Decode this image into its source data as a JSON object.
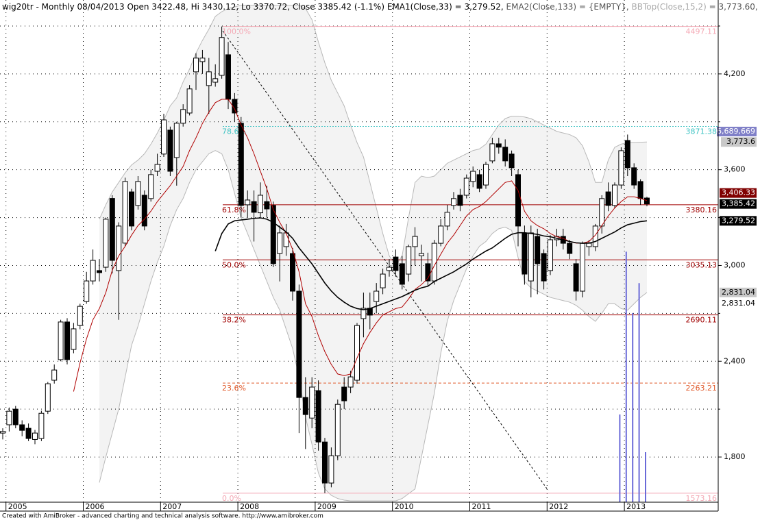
{
  "chart_data": {
    "type": "candlestick",
    "title_parts": [
      {
        "text": "wig20tr - Monthly 08/04/2013 Open 3422.48, Hi 3430.12, Lo 3370.72, Close 3385.42 (-1.1%) ",
        "color": "#000000"
      },
      {
        "text": "EMA1(Close,33) = 3,279.52, ",
        "color": "#000000"
      },
      {
        "text": "EMA2(Close,133) = {EMPTY}, ",
        "color": "#555555"
      },
      {
        "text": "BBTop(Close,15,2)",
        "color": "#aaaaaa"
      },
      {
        "text": " = 3,773.60, ",
        "color": "#555555"
      },
      {
        "text": "BBBot(Close,15,2) = ",
        "color": "#aaaaaa"
      }
    ],
    "footer": "Created with AmiBroker - advanced charting and technical analysis software. http://www.amibroker.com",
    "categories": [
      null,
      "2005",
      null,
      null,
      null,
      null,
      null,
      null,
      null,
      null,
      null,
      null,
      null,
      "2006",
      null,
      null,
      null,
      null,
      null,
      null,
      null,
      null,
      null,
      null,
      null,
      "2007",
      null,
      null,
      null,
      null,
      null,
      null,
      null,
      null,
      null,
      null,
      null,
      "2008",
      null,
      null,
      null,
      null,
      null,
      null,
      null,
      null,
      null,
      null,
      null,
      "2009",
      null,
      null,
      null,
      null,
      null,
      null,
      null,
      null,
      null,
      null,
      null,
      "2010",
      null,
      null,
      null,
      null,
      null,
      null,
      null,
      null,
      null,
      null,
      null,
      "2011",
      null,
      null,
      null,
      null,
      null,
      null,
      null,
      null,
      null,
      null,
      null,
      "2012",
      null,
      null,
      null,
      null,
      null,
      null,
      null,
      null,
      null,
      null,
      null,
      "2013",
      null,
      null,
      null
    ],
    "open": [
      1950,
      2002,
      2100,
      2002,
      1980,
      1910,
      1916,
      2087,
      2281,
      2410,
      2646,
      2474,
      2624,
      2774,
      2903,
      2968,
      2989,
      3420,
      2968,
      3140,
      3461,
      3376,
      3440,
      3419,
      3590,
      3698,
      3848,
      3676,
      3891,
      3955,
      4213,
      4277,
      4127,
      4148,
      4191,
      4320,
      4041,
      3891,
      3380,
      3400,
      3330,
      3400,
      3376,
      3075,
      3118,
      3075,
      2839,
      2173,
      2044,
      2216,
      1894,
      1637,
      1808,
      2238,
      2238,
      2281,
      2667,
      2732,
      2774,
      2860,
      2968,
      3053,
      3011,
      2946,
      3118,
      3060,
      3011,
      2903,
      3139,
      3247,
      3376,
      3440,
      3440,
      3526,
      3569,
      3504,
      3655,
      3762,
      3741,
      3698,
      3569,
      3204,
      2903,
      3182,
      3075,
      2968,
      3161,
      3182,
      3139,
      3011,
      2839,
      3118,
      3118,
      3247,
      3461,
      3376,
      3504,
      3783,
      3612,
      3526,
      3422.48
    ],
    "high": [
      1980,
      2110,
      2120,
      2030,
      2010,
      1970,
      2090,
      2270,
      2380,
      2660,
      2670,
      2640,
      2760,
      2960,
      3100,
      3040,
      3300,
      3440,
      3270,
      3550,
      3480,
      3560,
      3470,
      3600,
      3700,
      3950,
      3870,
      3900,
      4010,
      4130,
      4330,
      4350,
      4300,
      4260,
      4497.11,
      4400,
      4080,
      3930,
      3470,
      3470,
      3520,
      3500,
      3400,
      3250,
      3260,
      3110,
      2880,
      2300,
      2300,
      2280,
      1920,
      1860,
      2160,
      2300,
      2340,
      2640,
      2830,
      2830,
      2890,
      2980,
      3040,
      3100,
      3060,
      3130,
      3240,
      3130,
      3080,
      3160,
      3290,
      3380,
      3460,
      3480,
      3570,
      3620,
      3600,
      3650,
      3800,
      3800,
      3790,
      3720,
      3600,
      3250,
      3250,
      3230,
      3100,
      3190,
      3230,
      3230,
      3160,
      3040,
      3150,
      3160,
      3260,
      3440,
      3520,
      3520,
      3740,
      3820,
      3640,
      3540,
      3430.12
    ],
    "low": [
      1910,
      1960,
      1980,
      1930,
      1900,
      1880,
      1900,
      2070,
      2260,
      2400,
      2380,
      2450,
      2600,
      2760,
      2880,
      2900,
      2960,
      2950,
      2660,
      3120,
      3220,
      3350,
      3220,
      3400,
      3560,
      3680,
      3560,
      3500,
      3870,
      3940,
      4100,
      4200,
      3950,
      4120,
      4170,
      3980,
      3900,
      3300,
      3300,
      3150,
      3300,
      3300,
      2990,
      2900,
      3060,
      2780,
      1950,
      1850,
      1980,
      1840,
      1573.16,
      1610,
      1780,
      2100,
      2200,
      2260,
      2550,
      2600,
      2700,
      2820,
      2930,
      2930,
      2850,
      2900,
      3000,
      2900,
      2870,
      2880,
      3120,
      3220,
      3350,
      3340,
      3420,
      3490,
      3460,
      3480,
      3640,
      3700,
      3620,
      3560,
      3120,
      2880,
      2800,
      2820,
      2850,
      2940,
      3120,
      3100,
      3040,
      2780,
      2800,
      3060,
      3090,
      3200,
      3340,
      3360,
      3480,
      3560,
      3480,
      3380,
      3370.72
    ],
    "close": [
      1960,
      2087,
      2002,
      1967,
      1916,
      1950,
      2074,
      2259,
      2345,
      2646,
      2410,
      2603,
      2744,
      2903,
      3032,
      2955,
      3290,
      3032,
      3247,
      3526,
      3247,
      3526,
      3247,
      3569,
      3633,
      3912,
      3590,
      3891,
      3977,
      4106,
      4299,
      4299,
      4213,
      4170,
      4428,
      4041,
      3955,
      3376,
      3410,
      3333,
      3440,
      3354,
      3011,
      3204,
      3204,
      2839,
      2173,
      2066,
      2238,
      1894,
      1637,
      1808,
      2130,
      2152,
      2302,
      2624,
      2732,
      2689,
      2839,
      2946,
      2989,
      2968,
      2882,
      3118,
      3182,
      3075,
      2903,
      3139,
      3247,
      3333,
      3419,
      3376,
      3547,
      3590,
      3483,
      3633,
      3762,
      3741,
      3655,
      3612,
      3247,
      2946,
      3204,
      3011,
      2903,
      3161,
      3182,
      3139,
      3075,
      2839,
      3139,
      3139,
      3247,
      3419,
      3376,
      3504,
      3719,
      3612,
      3504,
      3419,
      3385.42
    ],
    "close_tag": "3,385.42",
    "overlays": [
      {
        "color": "#b00000",
        "tag": "3,406.33",
        "tag_color": "#800000",
        "values": [
          null,
          null,
          null,
          null,
          null,
          null,
          null,
          null,
          null,
          null,
          null,
          2210,
          2390,
          2540,
          2660,
          2730,
          2830,
          2970,
          3060,
          3120,
          3190,
          3250,
          3290,
          3340,
          3400,
          3450,
          3500,
          3560,
          3620,
          3720,
          3800,
          3890,
          3960,
          4020,
          4041,
          4041,
          3980,
          3880,
          3800,
          3700,
          3590,
          3480,
          3350,
          3270,
          3200,
          3100,
          2960,
          2760,
          2680,
          2560,
          2460,
          2380,
          2320,
          2310,
          2320,
          2420,
          2510,
          2580,
          2640,
          2690,
          2710,
          2730,
          2740,
          2790,
          2850,
          2880,
          2920,
          3000,
          3070,
          3140,
          3190,
          3250,
          3310,
          3350,
          3370,
          3400,
          3440,
          3480,
          3520,
          3530,
          3470,
          3340,
          3280,
          3250,
          3230,
          3200,
          3180,
          3170,
          3150,
          3140,
          3140,
          3150,
          3190,
          3250,
          3310,
          3360,
          3400,
          3430,
          3430,
          3420,
          3406.33
        ]
      },
      {
        "color": "#000000",
        "tag": "3,279.52",
        "tag_color": "#000000",
        "values": [
          null,
          null,
          null,
          null,
          null,
          null,
          null,
          null,
          null,
          null,
          null,
          null,
          null,
          null,
          null,
          null,
          null,
          null,
          null,
          null,
          null,
          null,
          null,
          null,
          null,
          null,
          null,
          null,
          null,
          null,
          null,
          null,
          null,
          3090,
          3200,
          3260,
          3280,
          3285,
          3290,
          3295,
          3298,
          3290,
          3270,
          3240,
          3210,
          3170,
          3110,
          3060,
          3010,
          2950,
          2890,
          2840,
          2800,
          2770,
          2745,
          2730,
          2723,
          2730,
          2745,
          2760,
          2775,
          2790,
          2805,
          2825,
          2845,
          2860,
          2870,
          2900,
          2920,
          2940,
          2960,
          2985,
          3010,
          3040,
          3065,
          3090,
          3110,
          3140,
          3170,
          3195,
          3205,
          3205,
          3200,
          3195,
          3185,
          3180,
          3170,
          3160,
          3150,
          3142,
          3139,
          3140,
          3150,
          3170,
          3190,
          3210,
          3235,
          3255,
          3265,
          3275,
          3279.52
        ]
      }
    ],
    "bands": {
      "line_color": "#b8b8b8",
      "fill_color": "#f3f3f3",
      "upper_tag": "3,773.6",
      "lower_tag": "2,831.04",
      "tag_color": "#c8c8c8",
      "upper": [
        null,
        null,
        null,
        null,
        null,
        null,
        null,
        null,
        null,
        null,
        null,
        null,
        null,
        null,
        null,
        3290,
        3380,
        3460,
        3520,
        3580,
        3630,
        3660,
        3700,
        3760,
        3830,
        3910,
        4000,
        4050,
        4150,
        4230,
        4330,
        4410,
        4480,
        4560,
        4590,
        4610,
        4620,
        4630,
        4630,
        4630,
        4630,
        4630,
        4630,
        4630,
        4630,
        4630,
        4630,
        4610,
        4540,
        4400,
        4270,
        4160,
        4080,
        4000,
        3880,
        3770,
        3680,
        3520,
        3360,
        3200,
        3060,
        3000,
        3060,
        3300,
        3520,
        3560,
        3550,
        3560,
        3600,
        3640,
        3660,
        3680,
        3700,
        3720,
        3730,
        3760,
        3820,
        3880,
        3920,
        3935,
        3935,
        3930,
        3920,
        3900,
        3880,
        3860,
        3840,
        3830,
        3820,
        3800,
        3750,
        3650,
        3520,
        3520,
        3660,
        3740,
        3760,
        3770,
        3770,
        3772,
        3773.6
      ],
      "lower": [
        null,
        null,
        null,
        null,
        null,
        null,
        null,
        null,
        null,
        null,
        null,
        null,
        null,
        null,
        null,
        1640,
        1800,
        1950,
        2100,
        2300,
        2500,
        2620,
        2760,
        2900,
        3020,
        3120,
        3250,
        3350,
        3420,
        3520,
        3600,
        3650,
        3700,
        3720,
        3700,
        3600,
        3450,
        3300,
        3200,
        3100,
        3000,
        2900,
        2800,
        2720,
        2600,
        2480,
        2300,
        2050,
        1880,
        1700,
        1600,
        1560,
        1540,
        1530,
        1525,
        1525,
        1525,
        1525,
        1525,
        1525,
        1525,
        1525,
        1540,
        1570,
        1600,
        1800,
        2000,
        2200,
        2450,
        2650,
        2780,
        2880,
        2980,
        3060,
        3120,
        3150,
        3200,
        3230,
        3240,
        3220,
        3050,
        2900,
        2860,
        2840,
        2820,
        2800,
        2790,
        2780,
        2770,
        2750,
        2720,
        2680,
        2650,
        2700,
        2760,
        2760,
        2730,
        2720,
        2760,
        2800,
        2831.04
      ]
    },
    "volume": {
      "color": "#6a6ad8",
      "tag": "6,689,669",
      "tag_color": "#8080c8",
      "vlim": [
        0,
        67170000
      ],
      "values": [
        null,
        null,
        null,
        null,
        null,
        null,
        null,
        null,
        null,
        null,
        null,
        null,
        null,
        null,
        null,
        null,
        null,
        null,
        null,
        null,
        null,
        null,
        null,
        null,
        null,
        null,
        null,
        null,
        null,
        null,
        null,
        null,
        null,
        null,
        null,
        null,
        null,
        null,
        null,
        null,
        null,
        null,
        null,
        null,
        null,
        null,
        null,
        null,
        null,
        null,
        null,
        null,
        null,
        null,
        null,
        null,
        null,
        null,
        null,
        null,
        null,
        null,
        null,
        null,
        null,
        null,
        null,
        null,
        null,
        null,
        null,
        null,
        null,
        null,
        null,
        null,
        null,
        null,
        null,
        null,
        null,
        null,
        null,
        null,
        null,
        null,
        null,
        null,
        null,
        null,
        null,
        null,
        null,
        null,
        null,
        null,
        11730000,
        33500000,
        25300000,
        29300000,
        6689669
      ]
    },
    "fib_levels": [
      {
        "label": "100.0%",
        "value": 4497.11,
        "color": "#f4a8b4",
        "style": "solid"
      },
      {
        "label": "78.6%",
        "value": 3871.38,
        "color": "#40c4c4",
        "style": "dotted"
      },
      {
        "label": "61.8%",
        "value": 3380.16,
        "color": "#a00000",
        "style": "solid"
      },
      {
        "label": "50.0%",
        "value": 3035.13,
        "color": "#a00000",
        "style": "solid"
      },
      {
        "label": "38.2%",
        "value": 2690.11,
        "color": "#a00000",
        "style": "solid"
      },
      {
        "label": "23.6%",
        "value": 2263.21,
        "color": "#e05828",
        "style": "dashed"
      },
      {
        "label": "0.0%",
        "value": 1573.16,
        "color": "#f4a8b4",
        "style": "solid"
      }
    ],
    "ylim": [
      1517,
      4663
    ],
    "yticks": [
      {
        "value": 1800,
        "label": "1,800"
      },
      {
        "value": 2400,
        "label": "2,400"
      },
      {
        "value": 3000,
        "label": "3,000"
      },
      {
        "value": 3600,
        "label": "3,600"
      },
      {
        "value": 4200,
        "label": "4,200"
      }
    ],
    "minor_yticks": [
      2100,
      2700,
      3300,
      3900,
      4500
    ],
    "grid": true
  }
}
